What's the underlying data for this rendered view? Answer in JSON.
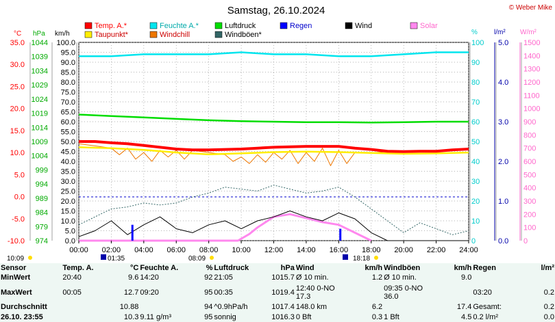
{
  "chart_data": {
    "type": "line",
    "title": "Samstag, 26.10.2024",
    "copyright": "© Weber Mike",
    "legend": [
      {
        "label": "Temp. A.*",
        "color": "#ff0000"
      },
      {
        "label": "Feuchte A.*",
        "color": "#00e5ee"
      },
      {
        "label": "Luftdruck",
        "color": "#00dd00"
      },
      {
        "label": "Regen",
        "color": "#0000ff"
      },
      {
        "label": "Wind",
        "color": "#000000"
      },
      {
        "label": "Solar",
        "color": "#ff88ee"
      },
      {
        "label": "Taupunkt*",
        "color": "#ffee00"
      },
      {
        "label": "Windchill",
        "color": "#ee7700"
      },
      {
        "label": "Windböen*",
        "color": "#336666"
      }
    ],
    "axes": {
      "temp": {
        "unit": "°C",
        "min": -10,
        "max": 35,
        "ticks": [
          "35.0",
          "30.0",
          "25.0",
          "20.0",
          "15.0",
          "10.0",
          "5.0",
          "0.0",
          "-5.0",
          "-10.0"
        ],
        "color": "#ff0000"
      },
      "pressure": {
        "unit": "hPa",
        "min": 974,
        "max": 1044,
        "ticks": [
          "1044",
          "1039",
          "1034",
          "1029",
          "1024",
          "1019",
          "1014",
          "1009",
          "1004",
          "999",
          "994",
          "989",
          "984",
          "979",
          "974"
        ],
        "color": "#00aa00"
      },
      "wind": {
        "unit": "km/h",
        "min": 0,
        "max": 100,
        "ticks": [
          "100.0",
          "95.0",
          "90.0",
          "85.0",
          "80.0",
          "75.0",
          "70.0",
          "65.0",
          "60.0",
          "55.0",
          "50.0",
          "45.0",
          "40.0",
          "35.0",
          "30.0",
          "25.0",
          "20.0",
          "15.0",
          "10.0",
          "5.0",
          "0.0"
        ]
      },
      "humidity": {
        "unit": "%",
        "min": 0,
        "max": 100,
        "ticks": [
          "100",
          "90",
          "80",
          "70",
          "60",
          "50",
          "40",
          "30",
          "20",
          "10",
          "0"
        ],
        "color": "#00cccc"
      },
      "rain": {
        "unit": "l/m²",
        "min": 0,
        "max": 5,
        "ticks": [
          "5.0",
          "4.0",
          "3.0",
          "2.0",
          "1.0",
          "0.0"
        ],
        "color": "#0000aa"
      },
      "solar": {
        "unit": "W/m²",
        "min": 0,
        "max": 1500,
        "ticks": [
          "1500",
          "1400",
          "1300",
          "1200",
          "1100",
          "1000",
          "900",
          "800",
          "700",
          "600",
          "500",
          "400",
          "300",
          "200",
          "100",
          "0"
        ],
        "color": "#ff66cc"
      },
      "x": {
        "min": 0,
        "max": 24,
        "ticks": [
          "00:00",
          "02:00",
          "04:00",
          "06:00",
          "08:00",
          "10:00",
          "12:00",
          "14:00",
          "16:00",
          "18:00",
          "20:00",
          "22:00",
          "24:00"
        ]
      }
    },
    "series": [
      {
        "name": "Temp. A.*",
        "axis": "temp",
        "color": "#ff0000",
        "x": [
          0,
          1,
          2,
          3,
          4,
          5,
          6,
          7,
          8,
          9,
          10,
          11,
          12,
          13,
          14,
          15,
          16,
          17,
          18,
          19,
          20,
          21,
          22,
          23,
          24
        ],
        "y": [
          12.5,
          12.5,
          12.2,
          12.0,
          11.6,
          11.2,
          10.8,
          10.6,
          10.6,
          10.7,
          10.8,
          11.0,
          11.2,
          11.3,
          11.4,
          11.4,
          11.4,
          11.0,
          10.7,
          10.3,
          10.2,
          10.3,
          10.3,
          10.6,
          10.8
        ]
      },
      {
        "name": "Taupunkt*",
        "axis": "temp",
        "color": "#ffee00",
        "x": [
          0,
          2,
          4,
          6,
          8,
          10,
          12,
          14,
          16,
          18,
          20,
          22,
          24
        ],
        "y": [
          11.2,
          11.0,
          10.6,
          10.0,
          9.6,
          9.8,
          10.1,
          10.2,
          10.1,
          9.9,
          9.7,
          9.8,
          10.0
        ]
      },
      {
        "name": "Feuchte A.*",
        "axis": "humidity",
        "color": "#00e5ee",
        "x": [
          0,
          2,
          4,
          6,
          8,
          10,
          12,
          14,
          16,
          18,
          20,
          22,
          24
        ],
        "y": [
          93,
          93,
          94,
          94,
          94,
          95,
          94,
          94,
          93,
          93,
          94,
          95,
          95
        ]
      },
      {
        "name": "Luftdruck",
        "axis": "pressure",
        "color": "#00dd00",
        "x": [
          0,
          2,
          4,
          6,
          8,
          10,
          12,
          14,
          16,
          18,
          20,
          22,
          24
        ],
        "y": [
          1018.5,
          1018.0,
          1017.5,
          1017.0,
          1016.5,
          1016.2,
          1016.0,
          1015.8,
          1015.8,
          1015.7,
          1015.8,
          1016.0,
          1016.0
        ]
      },
      {
        "name": "Windchill",
        "axis": "temp",
        "color": "#ee7700",
        "x": [
          0,
          1,
          2,
          2.5,
          3,
          3.5,
          4,
          4.5,
          5,
          5.5,
          6,
          6.5,
          7,
          8,
          9,
          9.5,
          10,
          10.5,
          11,
          11.5,
          12,
          12.5,
          13,
          13.5,
          14,
          14.5,
          15,
          15.5,
          16,
          16.5,
          17,
          18,
          19,
          20,
          22,
          24
        ],
        "y": [
          12.0,
          11.5,
          11.0,
          9.5,
          11.0,
          8.5,
          10.0,
          8.0,
          10.5,
          9.0,
          10.5,
          8.5,
          10.5,
          10.0,
          9.5,
          8.0,
          9.0,
          7.5,
          9.5,
          7.8,
          10.0,
          8.5,
          10.5,
          7.5,
          10.0,
          8.0,
          11.0,
          7.0,
          10.5,
          7.5,
          10.0,
          9.9,
          10.2,
          10.2,
          10.3,
          10.8
        ]
      },
      {
        "name": "Wind",
        "axis": "wind",
        "color": "#000000",
        "x": [
          0,
          1,
          2,
          3,
          4,
          5,
          6,
          7,
          8,
          9,
          10,
          11,
          12,
          13,
          14,
          15,
          16,
          17,
          18,
          19,
          20,
          21,
          22,
          23,
          24
        ],
        "y": [
          2,
          5,
          10,
          3,
          8,
          12,
          6,
          4,
          8,
          10,
          6,
          10,
          12,
          15,
          12,
          10,
          14,
          11,
          4,
          0,
          0,
          0,
          0,
          0,
          0
        ]
      },
      {
        "name": "Windböen*",
        "axis": "wind",
        "color": "#336666",
        "x": [
          0,
          1,
          2,
          3,
          4,
          5,
          6,
          7,
          8,
          9,
          10,
          11,
          12,
          13,
          14,
          15,
          16,
          17,
          18,
          19,
          20,
          21,
          22,
          23,
          24
        ],
        "y": [
          8,
          12,
          16,
          17,
          19,
          18,
          19,
          22,
          24,
          27,
          26,
          25,
          28,
          26,
          24,
          25,
          27,
          22,
          16,
          10,
          4,
          9,
          6,
          3,
          5
        ]
      },
      {
        "name": "Solar",
        "axis": "solar",
        "color": "#ff88ee",
        "x": [
          0,
          9.8,
          10.5,
          11,
          12,
          13,
          14,
          15,
          16,
          17,
          18
        ],
        "y": [
          0,
          0,
          50,
          100,
          180,
          200,
          170,
          140,
          120,
          60,
          0
        ]
      }
    ],
    "rain_bars": [
      {
        "x": 3.3,
        "y": 0.4
      },
      {
        "x": 16.1,
        "y": 0.3
      }
    ]
  },
  "events": {
    "sunrise": "10:09",
    "sunset": "08:09",
    "moonrise": "01:35",
    "moonset": "18:18"
  },
  "table": {
    "headers": [
      "Sensor",
      "Temp. A.",
      "°C",
      "Feuchte A.",
      "%",
      "Luftdruck",
      "hPa",
      "Wind",
      "km/h",
      "Windböen",
      "km/h",
      "Regen",
      "l/m²"
    ],
    "rows": [
      [
        "MinWert",
        "20:40",
        "9.6",
        "14:20",
        "92",
        "21:05",
        "1015.7",
        "Ø 10 min.",
        "1.2",
        "Ø 10 min.",
        "9.0",
        "",
        ""
      ],
      [
        "MaxWert",
        "00:05",
        "12.7",
        "09:20",
        "95",
        "00:35",
        "1019.4",
        "12:40   0-NO 17.3",
        "",
        "09:35   0-NO 36.0",
        "",
        "03:20",
        "0.2"
      ],
      [
        "Durchschnitt",
        "",
        "10.88",
        "",
        "94",
        "^0.9hPa/h",
        "1017.4",
        "148.0 km",
        "6.2",
        "",
        "17.4",
        "Gesamt:",
        "0.2"
      ],
      [
        "26.10. 23:55",
        "",
        "10.3",
        "9.11 g/m³",
        "95",
        "sonnig",
        "1016.3",
        "0 Bft",
        "0.3",
        "1 Bft",
        "4.5",
        "0.2 l/m²",
        "0.0"
      ]
    ]
  }
}
